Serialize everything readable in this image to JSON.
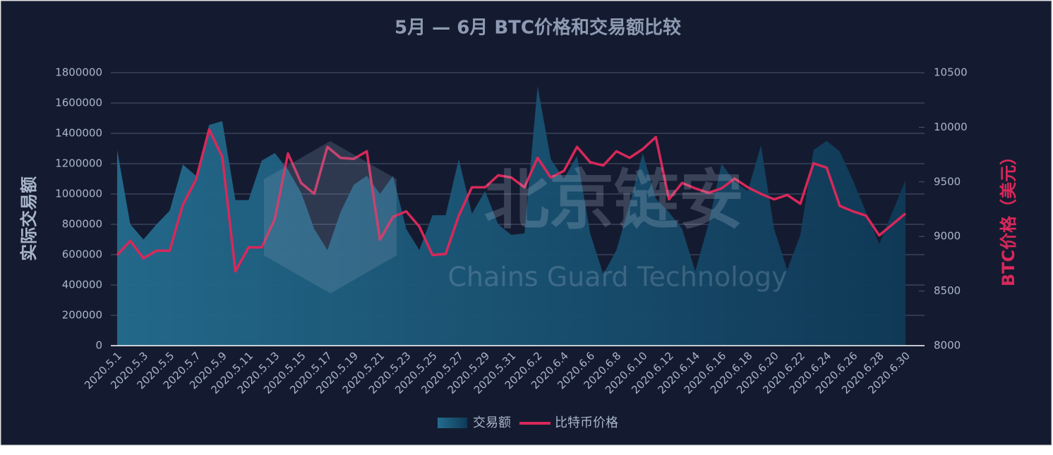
{
  "chart_data": {
    "type": "area-line",
    "title": "5月 — 6月 BTC价格和交易额比较",
    "ylabel": "实际交易额",
    "y2label": "BTC价格（美元）",
    "watermark": {
      "text": "北京链安",
      "subtext": "Chains Guard Technology"
    },
    "categories": [
      "2020.5.1",
      null,
      "2020.5.3",
      null,
      "2020.5.5",
      null,
      "2020.5.7",
      null,
      "2020.5.9",
      null,
      "2020.5.11",
      null,
      "2020.5.13",
      null,
      "2020.5.15",
      null,
      "2020.5.17",
      null,
      "2020.5.19",
      null,
      "2020.5.21",
      null,
      "2020.5.23",
      null,
      "2020.5.25",
      null,
      "2020.5.27",
      null,
      "2020.5.29",
      null,
      "2020.5.31",
      null,
      "2020.6.2",
      null,
      "2020.6.4",
      null,
      "2020.6.6",
      null,
      "2020.6.8",
      null,
      "2020.6.10",
      null,
      "2020.6.12",
      null,
      "2020.6.14",
      null,
      "2020.6.16",
      null,
      "2020.6.18",
      null,
      "2020.6.20",
      null,
      "2020.6.22",
      null,
      "2020.6.24",
      null,
      "2020.6.26",
      null,
      "2020.6.28",
      null,
      "2020.6.30"
    ],
    "series": [
      {
        "name": "交易额",
        "type": "area",
        "color": "#1f6384",
        "values": [
          1290000,
          800000,
          700000,
          800000,
          890000,
          1195000,
          1120000,
          1455000,
          1480000,
          960000,
          960000,
          1220000,
          1270000,
          1160000,
          1010000,
          770000,
          630000,
          880000,
          1060000,
          1120000,
          1000000,
          1120000,
          770000,
          630000,
          860000,
          860000,
          1230000,
          870000,
          1020000,
          800000,
          730000,
          740000,
          1710000,
          1230000,
          1100000,
          1250000,
          740000,
          470000,
          630000,
          930000,
          1270000,
          970000,
          880000,
          770000,
          490000,
          800000,
          1200000,
          1080000,
          1020000,
          1320000,
          770000,
          500000,
          730000,
          1290000,
          1350000,
          1280000,
          1090000,
          880000,
          670000,
          880000,
          1090000
        ]
      },
      {
        "name": "比特币价格",
        "type": "line",
        "axis": "y2",
        "color": "#d8285a",
        "values": [
          8830,
          8960,
          8800,
          8870,
          8870,
          9290,
          9520,
          9980,
          9730,
          8680,
          8900,
          8900,
          9160,
          9760,
          9490,
          9390,
          9820,
          9720,
          9710,
          9780,
          8970,
          9180,
          9230,
          9090,
          8830,
          8840,
          9190,
          9450,
          9450,
          9560,
          9540,
          9450,
          9720,
          9540,
          9600,
          9820,
          9680,
          9650,
          9780,
          9720,
          9800,
          9910,
          9340,
          9490,
          9440,
          9400,
          9440,
          9530,
          9450,
          9390,
          9340,
          9380,
          9300,
          9670,
          9630,
          9280,
          9230,
          9190,
          9010,
          9110,
          9210
        ]
      }
    ],
    "ylim": [
      0,
      1800000
    ],
    "yticks": [
      0,
      200000,
      400000,
      600000,
      800000,
      1000000,
      1200000,
      1400000,
      1600000,
      1800000
    ],
    "y2lim": [
      8000,
      10500
    ],
    "y2ticks": [
      8000,
      8500,
      9000,
      9500,
      10000,
      10500
    ],
    "grid": true,
    "legend": "bottom"
  }
}
